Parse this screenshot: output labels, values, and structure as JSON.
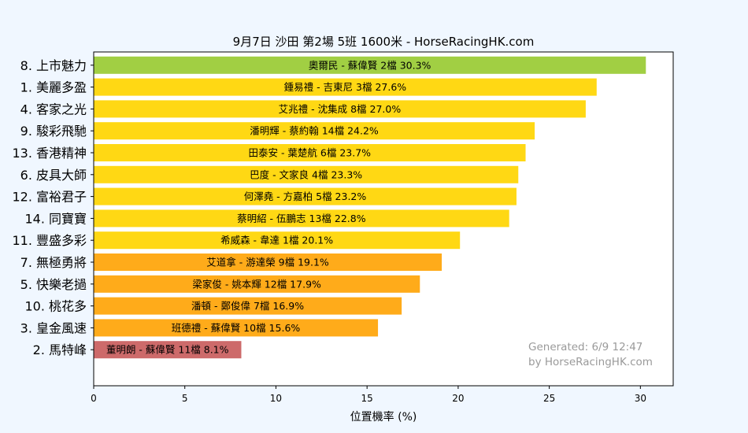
{
  "chart_data": {
    "type": "bar",
    "orientation": "horizontal",
    "title": "9月7日  沙田  第2場  5班  1600米 - HorseRacingHK.com",
    "xlabel": "位置機率 (%)",
    "ylabel": "",
    "xlim": [
      0,
      31.8
    ],
    "xticks": [
      "0",
      "5",
      "10",
      "15",
      "20",
      "25",
      "30"
    ],
    "grid": false,
    "categories": [
      "8. 上市魅力",
      "1. 美麗多盈",
      "4. 客家之光",
      "9. 駿彩飛馳",
      "13. 香港精神",
      "6. 皮具大師",
      "12. 富裕君子",
      "14. 同寶寶",
      "11. 豐盛多彩",
      "7. 無極勇將",
      "5. 快樂老撾",
      "10. 桃花多",
      "3. 皇金風速",
      "2. 馬特峰"
    ],
    "values": [
      30.3,
      27.6,
      27.0,
      24.2,
      23.7,
      23.3,
      23.2,
      22.8,
      20.1,
      19.1,
      17.9,
      16.9,
      15.6,
      8.1
    ],
    "bar_labels": [
      "奧爾民 - 蘇偉賢 2檔  30.3%",
      "鍾易禮 - 吉東尼 3檔  27.6%",
      "艾兆禮 - 沈集成 8檔  27.0%",
      "潘明輝 - 蔡約翰 14檔  24.2%",
      "田泰安 - 葉楚航 6檔  23.7%",
      "巴度 - 文家良 4檔  23.3%",
      "何澤堯 - 方嘉柏 5檔  23.2%",
      "蔡明紹 - 伍鵬志 13檔  22.8%",
      "希威森 - 韋達 1檔  20.1%",
      "艾道拿 - 游達榮 9檔  19.1%",
      "梁家俊 - 姚本輝 12檔  17.9%",
      "潘頓 - 鄭俊偉 7檔  16.9%",
      "班德禮 - 蘇偉賢 10檔  15.6%",
      "董明朗 - 蘇偉賢 11檔  8.1%"
    ],
    "bar_colors": [
      "#a1cf43",
      "#ffd814",
      "#ffd814",
      "#ffd814",
      "#ffd814",
      "#ffd814",
      "#ffd814",
      "#ffd814",
      "#ffd814",
      "#ffab1a",
      "#ffab1a",
      "#ffab1a",
      "#ffab1a",
      "#cd6a6a"
    ]
  },
  "watermark": {
    "line1": "Generated: 6/9 12:47",
    "line2": "by HorseRacingHK.com"
  },
  "colors": {
    "background": "#f0f7ff",
    "axes_face": "#ffffff",
    "watermark": "#9a9a9a"
  }
}
